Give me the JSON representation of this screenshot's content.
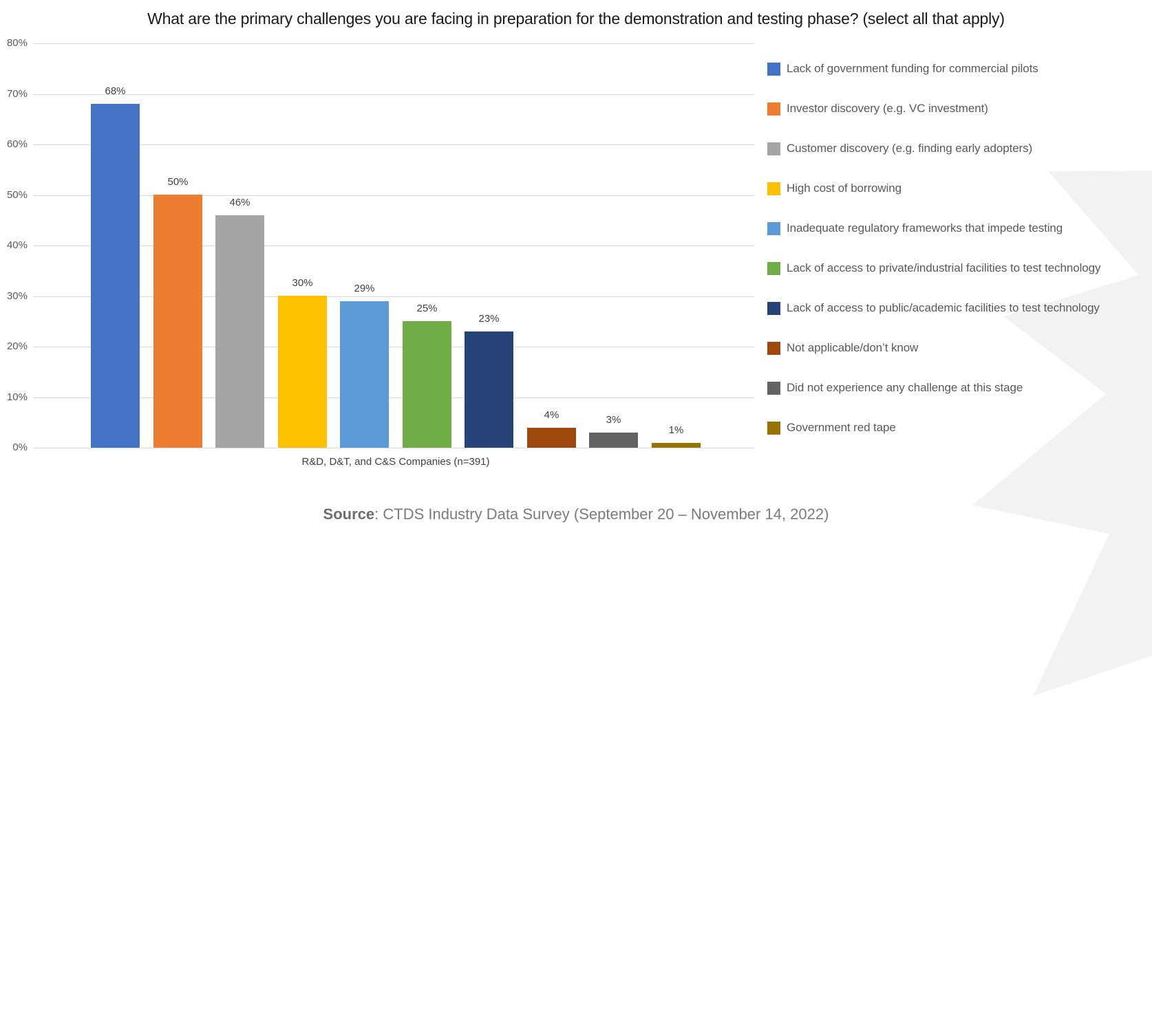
{
  "title": "What are the primary challenges you are facing in preparation for the demonstration and testing phase? (select all that apply)",
  "source": {
    "prefix": "Source",
    "text": ": CTDS Industry Data Survey (September 20 – November 14, 2022)"
  },
  "watermark": {
    "shape": "maple-leaf",
    "color": "#f2f2f2"
  },
  "chart_data": {
    "type": "bar",
    "title": "What are the primary challenges you are facing in preparation for the demonstration and testing phase? (select all that apply)",
    "categories": [
      "Lack of government funding for commercial pilots",
      "Investor discovery (e.g. VC investment)",
      "Customer discovery (e.g. finding early adopters)",
      "High cost of borrowing",
      "Inadequate regulatory frameworks that impede testing",
      "Lack of access to private/industrial facilities to test technology",
      "Lack of access to public/academic facilities to test technology",
      "Not applicable/don’t know",
      "Did not experience any challenge at this stage",
      "Government red tape"
    ],
    "values": [
      68,
      50,
      46,
      30,
      29,
      25,
      23,
      4,
      3,
      1
    ],
    "value_labels": [
      "68%",
      "50%",
      "46%",
      "30%",
      "29%",
      "25%",
      "23%",
      "4%",
      "3%",
      "1%"
    ],
    "colors": [
      "#4472C4",
      "#ED7D31",
      "#A5A5A5",
      "#FFC000",
      "#5B9BD5",
      "#70AD47",
      "#264478",
      "#9E480E",
      "#636363",
      "#997300"
    ],
    "x_group_label": "R&D, D&T, and C&S Companies (n=391)",
    "y_ticks": [
      "0%",
      "10%",
      "20%",
      "30%",
      "40%",
      "50%",
      "60%",
      "70%",
      "80%"
    ],
    "ylim": [
      0,
      80
    ],
    "grid": true,
    "legend_position": "right",
    "gridline_color": "#d9d9d9"
  }
}
